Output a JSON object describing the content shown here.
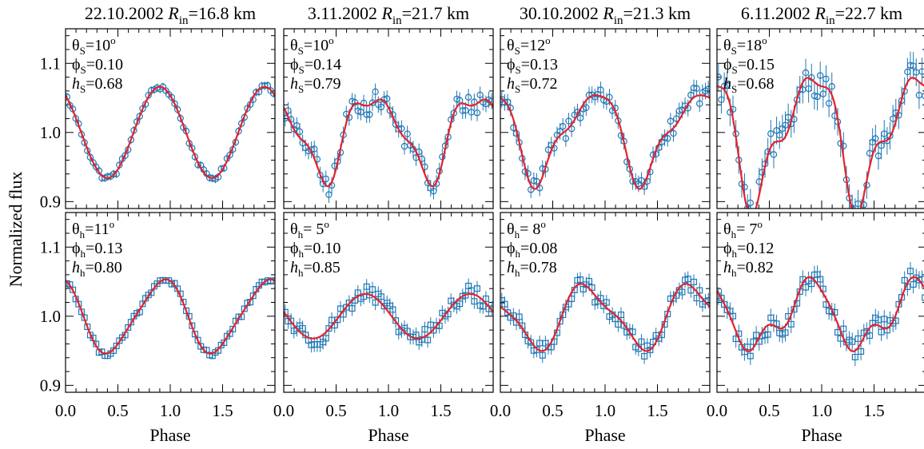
{
  "chart_data": {
    "type": "scatter",
    "ylabel": "Normalized flux",
    "xlabel": "Phase",
    "xlim": [
      0,
      2
    ],
    "ylim": [
      0.89,
      1.15
    ],
    "xticks": [
      "0.0",
      "0.5",
      "1.0",
      "1.5"
    ],
    "yticks": [
      "0.9",
      "1.0",
      "1.1"
    ],
    "colors": {
      "model": "#e8212b",
      "data": "#1f77b4",
      "frame": "#000000"
    },
    "columns": [
      {
        "date": "22.10.2002",
        "rin": "=16.8 km"
      },
      {
        "date": "3.11.2002",
        "rin": "=21.7 km"
      },
      {
        "date": "30.10.2002",
        "rin": "=21.3 km"
      },
      {
        "date": "6.11.2002",
        "rin": "=22.7 km"
      }
    ],
    "panels": [
      {
        "row": "soft",
        "col": 0,
        "marker": "circle",
        "theta": "10",
        "phi": "0.10",
        "h": "0.68",
        "model": {
          "c": 1.0,
          "a1": 0.0,
          "p1": 0.0,
          "a2": 0.066,
          "p2": 0.9
        },
        "noise": 0.004,
        "err": 0.006
      },
      {
        "row": "soft",
        "col": 1,
        "marker": "circle",
        "theta": "10",
        "phi": "0.14",
        "h": "0.79",
        "model": {
          "c": 1.0,
          "a1": 0.005,
          "p1": 0.65,
          "a2": 0.055,
          "p2": 0.88,
          "a3": 0.015,
          "p3": 0.17,
          "a4": 0.012,
          "p4": 0.95
        },
        "noise": 0.014,
        "err": 0.012
      },
      {
        "row": "soft",
        "col": 2,
        "marker": "circle",
        "theta": "12",
        "phi": "0.13",
        "h": "0.72",
        "model": {
          "c": 1.0,
          "a1": 0.005,
          "p1": 0.85,
          "a2": 0.055,
          "p2": 0.88,
          "a3": 0.018,
          "p3": 0.55,
          "a4": 0.008,
          "p4": 0.15
        },
        "noise": 0.014,
        "err": 0.012
      },
      {
        "row": "soft",
        "col": 3,
        "marker": "circle",
        "theta": "18",
        "phi": "0.15",
        "h": "0.68",
        "model": {
          "c": 1.0,
          "a1": 0.0,
          "p1": 0.0,
          "a2": 0.085,
          "p2": 0.89,
          "a3": 0.025,
          "p3": 0.55,
          "a4": 0.02,
          "p4": 0.15
        },
        "noise": 0.02,
        "err": 0.02
      },
      {
        "row": "hard",
        "col": 0,
        "marker": "square",
        "theta": "11",
        "phi": "0.13",
        "h": "0.80",
        "model": {
          "c": 1.0,
          "a1": 0.0,
          "p1": 0.0,
          "a2": 0.052,
          "p2": 0.92,
          "a3": 0.007,
          "p3": 0.55
        },
        "noise": 0.004,
        "err": 0.005
      },
      {
        "row": "hard",
        "col": 1,
        "marker": "square",
        "theta": " 5",
        "phi": "0.10",
        "h": "0.85",
        "model": {
          "c": 1.0,
          "a1": 0.004,
          "p1": 0.55,
          "a2": 0.032,
          "p2": 0.8,
          "a3": 0.0,
          "p3": 0.0
        },
        "noise": 0.012,
        "err": 0.011
      },
      {
        "row": "hard",
        "col": 2,
        "marker": "square",
        "theta": " 8",
        "phi": "0.08",
        "h": "0.78",
        "model": {
          "c": 1.0,
          "a1": 0.006,
          "p1": 0.7,
          "a2": 0.04,
          "p2": 0.86,
          "a3": 0.012,
          "p3": 0.2
        },
        "noise": 0.011,
        "err": 0.011
      },
      {
        "row": "hard",
        "col": 3,
        "marker": "square",
        "theta": " 7",
        "phi": "0.12",
        "h": "0.82",
        "model": {
          "c": 1.0,
          "a1": 0.0,
          "p1": 0.0,
          "a2": 0.044,
          "p2": 0.88,
          "a3": 0.015,
          "p3": 0.45,
          "a4": 0.008,
          "p4": 0.15
        },
        "noise": 0.014,
        "err": 0.013
      }
    ]
  }
}
